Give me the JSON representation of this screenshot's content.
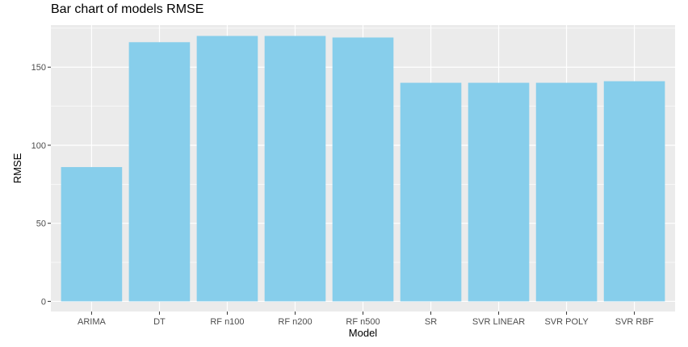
{
  "chart_data": {
    "type": "bar",
    "title": "Bar chart of models RMSE",
    "xlabel": "Model",
    "ylabel": "RMSE",
    "categories": [
      "ARIMA",
      "DT",
      "RF n100",
      "RF n200",
      "RF n500",
      "SR",
      "SVR LINEAR",
      "SVR POLY",
      "SVR RBF"
    ],
    "values": [
      86,
      166,
      170,
      170,
      169,
      140,
      140,
      140,
      141
    ],
    "ylim": [
      -6.5,
      177
    ],
    "yticks": [
      0,
      50,
      100,
      150
    ],
    "grid": true,
    "bar_color": "#87CEEB",
    "panel_background": "#EBEBEB",
    "grid_color": "#FFFFFF"
  }
}
